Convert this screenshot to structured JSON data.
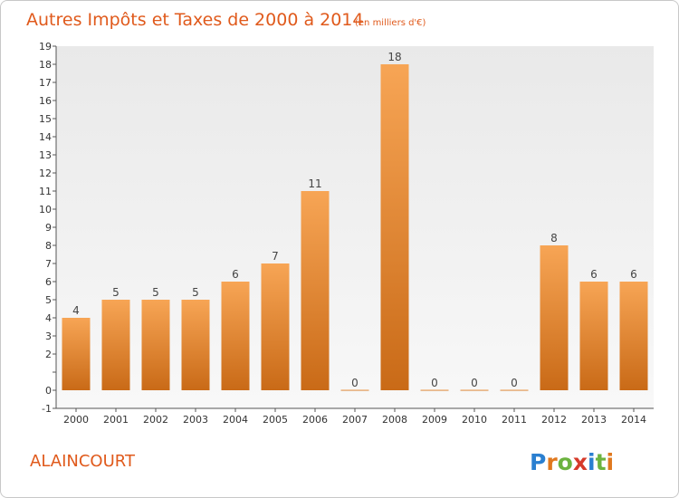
{
  "colors": {
    "bar_top": "#f7a555",
    "bar_bottom": "#c96a17",
    "accent": "#e05a1c",
    "plot_bg_top": "#e9e9e9",
    "plot_bg_bottom": "#f8f8f8"
  },
  "commune": "ALAINCOURT",
  "logo": {
    "text": "Proxiti",
    "letters": [
      "P",
      "r",
      "o",
      "x",
      "i",
      "t",
      "i"
    ],
    "letter_colors": [
      "#2a7fd0",
      "#e0781e",
      "#6cb33f",
      "#d63a2a",
      "#2a7fd0",
      "#6cb33f",
      "#e0781e"
    ]
  },
  "chart_data": {
    "type": "bar",
    "title": "Autres Impôts et Taxes de 2000 à 2014",
    "subtitle": "(en milliers d'€)",
    "categories": [
      "2000",
      "2001",
      "2002",
      "2003",
      "2004",
      "2005",
      "2006",
      "2007",
      "2008",
      "2009",
      "2010",
      "2011",
      "2012",
      "2013",
      "2014"
    ],
    "values": [
      4,
      5,
      5,
      5,
      6,
      7,
      11,
      0,
      18,
      0,
      0,
      0,
      8,
      6,
      6
    ],
    "value_labels": [
      "4",
      "5",
      "5",
      "5",
      "6",
      "7",
      "11",
      "0",
      "18",
      "0",
      "0",
      "0",
      "8",
      "6",
      "6"
    ],
    "ylim": [
      -1,
      19
    ],
    "y_ticks": [
      -1,
      0,
      1,
      2,
      3,
      4,
      5,
      6,
      7,
      8,
      9,
      10,
      11,
      12,
      13,
      14,
      15,
      16,
      17,
      18,
      19
    ],
    "y_tick_labels": [
      "-1",
      "0",
      "",
      "2",
      "3",
      "4",
      "5",
      "6",
      "7",
      "8",
      "9",
      "10",
      "11",
      "12",
      "13",
      "14",
      "15",
      "16",
      "17",
      "18",
      "19"
    ],
    "grid": false,
    "legend": false
  }
}
